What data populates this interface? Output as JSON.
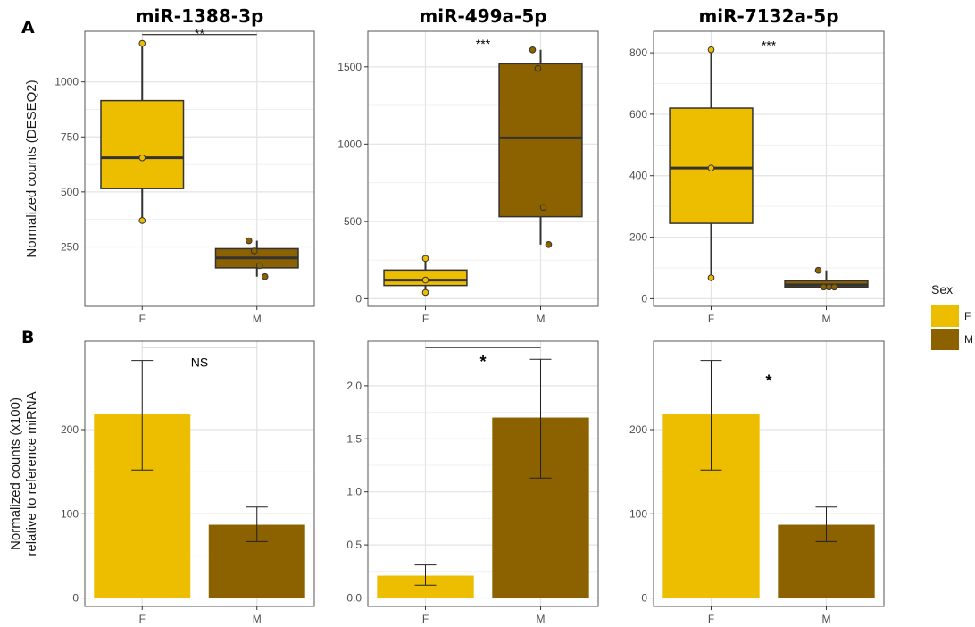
{
  "figure": {
    "panel_labels": [
      "A",
      "B"
    ],
    "legend": {
      "title": "Sex",
      "items": [
        {
          "label": "F",
          "color": "#EDBE00"
        },
        {
          "label": "M",
          "color": "#8C6200"
        }
      ]
    }
  },
  "chart_data": [
    {
      "type": "box",
      "row": "A",
      "title": "miR-1388-3p",
      "categories": [
        "F",
        "M"
      ],
      "ylabel": "Normalized counts (DESEQ2)",
      "ylim": [
        -20,
        1230
      ],
      "yticks": [
        250,
        500,
        750,
        1000
      ],
      "boxes": [
        {
          "category": "F",
          "q1": 515,
          "median": 655,
          "q3": 915,
          "whisker_low": 370,
          "whisker_high": 1175,
          "points": [
            1175,
            655,
            370
          ],
          "color": "#EDBE00"
        },
        {
          "category": "M",
          "q1": 155,
          "median": 200,
          "q3": 242,
          "whisker_low": 115,
          "whisker_high": 278,
          "points": [
            278,
            232,
            165,
            115
          ],
          "color": "#8C6200"
        }
      ],
      "significance": {
        "label": "**",
        "bracket": true,
        "y": 1215
      }
    },
    {
      "type": "box",
      "row": "A",
      "title": "miR-499a-5p",
      "categories": [
        "F",
        "M"
      ],
      "ylabel": "",
      "ylim": [
        -50,
        1730
      ],
      "yticks": [
        0,
        500,
        1000,
        1500
      ],
      "boxes": [
        {
          "category": "F",
          "q1": 85,
          "median": 120,
          "q3": 185,
          "whisker_low": 40,
          "whisker_high": 260,
          "points": [
            260,
            120,
            40
          ],
          "color": "#EDBE00"
        },
        {
          "category": "M",
          "q1": 530,
          "median": 1040,
          "q3": 1520,
          "whisker_low": 350,
          "whisker_high": 1610,
          "points": [
            1610,
            1490,
            590,
            350
          ],
          "color": "#8C6200"
        }
      ],
      "significance": {
        "label": "***",
        "bracket": false,
        "y": 1690
      }
    },
    {
      "type": "box",
      "row": "A",
      "title": "miR-7132a-5p",
      "categories": [
        "F",
        "M"
      ],
      "ylabel": "",
      "ylim": [
        -25,
        870
      ],
      "yticks": [
        0,
        200,
        400,
        600,
        800
      ],
      "boxes": [
        {
          "category": "F",
          "q1": 245,
          "median": 425,
          "q3": 620,
          "whisker_low": 68,
          "whisker_high": 810,
          "points": [
            810,
            425,
            68
          ],
          "color": "#EDBE00"
        },
        {
          "category": "M",
          "q1": 38,
          "median": 45,
          "q3": 58,
          "whisker_low": 36,
          "whisker_high": 92,
          "points": [
            92,
            38,
            38,
            38
          ],
          "color": "#8C6200"
        }
      ],
      "significance": {
        "label": "***",
        "bracket": false,
        "y": 845
      }
    },
    {
      "type": "bar",
      "row": "B",
      "title": "",
      "categories": [
        "F",
        "M"
      ],
      "ylabel": [
        "Normalized counts (x100)",
        "relative to reference miRNA"
      ],
      "ylim": [
        -10,
        305
      ],
      "yticks": [
        0,
        100,
        200
      ],
      "values": [
        218,
        87
      ],
      "err_low": [
        152,
        67
      ],
      "err_high": [
        282,
        108
      ],
      "colors": [
        "#EDBE00",
        "#8C6200"
      ],
      "significance": {
        "label": "NS",
        "bracket": true,
        "y": 298
      }
    },
    {
      "type": "bar",
      "row": "B",
      "title": "",
      "categories": [
        "F",
        "M"
      ],
      "ylabel": "",
      "ylim": [
        -0.08,
        2.42
      ],
      "yticks": [
        0.0,
        0.5,
        1.0,
        1.5,
        2.0
      ],
      "values": [
        0.21,
        1.7
      ],
      "err_low": [
        0.12,
        1.13
      ],
      "err_high": [
        0.31,
        2.25
      ],
      "colors": [
        "#EDBE00",
        "#8C6200"
      ],
      "significance": {
        "label": "*",
        "bracket": true,
        "y": 2.36
      }
    },
    {
      "type": "bar",
      "row": "B",
      "title": "",
      "categories": [
        "F",
        "M"
      ],
      "ylabel": "",
      "ylim": [
        -10,
        305
      ],
      "yticks": [
        0,
        100,
        200
      ],
      "values": [
        218,
        87
      ],
      "err_low": [
        152,
        67
      ],
      "err_high": [
        282,
        108
      ],
      "colors": [
        "#EDBE00",
        "#8C6200"
      ],
      "significance": {
        "label": "*",
        "bracket": false,
        "y": 275
      }
    }
  ]
}
